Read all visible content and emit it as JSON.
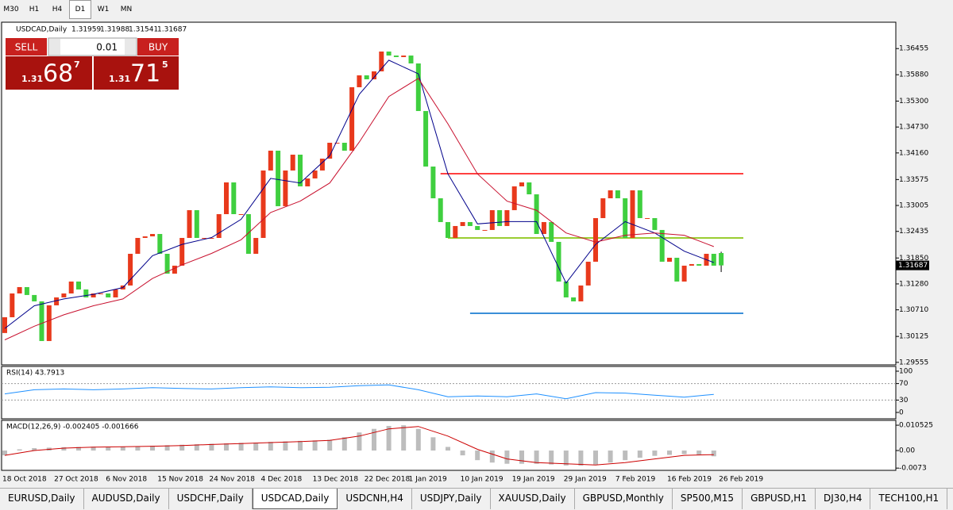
{
  "toolbar": {
    "timeframes": [
      "M30",
      "H1",
      "H4",
      "D1",
      "W1",
      "MN"
    ],
    "active": 3
  },
  "trade_panel": {
    "sell": "SELL",
    "lot": "0.01",
    "buy": "BUY",
    "bid_big": "1.31",
    "bid_main": "68",
    "bid_pip": "7",
    "ask_big": "1.31",
    "ask_main": "71",
    "ask_pip": "5"
  },
  "bottom_tabs": {
    "items": [
      "EURUSD,Daily",
      "AUDUSD,Daily",
      "USDCHF,Daily",
      "USDCAD,Daily",
      "USDCNH,H4",
      "USDJPY,Daily",
      "XAUUSD,Daily",
      "GBPUSD,Monthly",
      "SP500,M15",
      "GBPUSD,H1",
      "DJ30,H4",
      "TECH100,H1"
    ],
    "active": 3
  },
  "chart_data": [
    {
      "type": "candlestick",
      "title": "USDCAD,Daily",
      "up_color": "#e8391c",
      "down_color": "#3fcf3f",
      "categories": [
        "18 Oct 2018",
        null,
        null,
        null,
        null,
        null,
        null,
        "27 Oct 2018",
        null,
        null,
        null,
        null,
        null,
        null,
        "6 Nov 2018",
        null,
        null,
        null,
        null,
        null,
        null,
        "15 Nov 2018",
        null,
        null,
        null,
        null,
        null,
        null,
        "24 Nov 2018",
        null,
        null,
        null,
        null,
        null,
        null,
        "4 Dec 2018",
        null,
        null,
        null,
        null,
        null,
        null,
        "13 Dec 2018",
        null,
        null,
        null,
        null,
        null,
        null,
        "22 Dec 2018",
        null,
        null,
        null,
        null,
        null,
        "1 Jan 2019",
        null,
        null,
        null,
        null,
        null,
        null,
        "10 Jan 2019",
        null,
        null,
        null,
        null,
        null,
        null,
        "19 Jan 2019",
        null,
        null,
        null,
        null,
        null,
        null,
        "29 Jan 2019",
        null,
        null,
        null,
        null,
        null,
        null,
        "7 Feb 2019",
        null,
        null,
        null,
        null,
        null,
        null,
        "16 Feb 2019",
        null,
        null,
        null,
        null,
        null,
        null,
        "26 Feb 2019"
      ],
      "open": [
        1.302,
        1.30547,
        1.3107,
        1.3121,
        1.31036,
        1.30896,
        1.30024,
        1.30809,
        1.30983,
        1.3107,
        1.31332,
        1.31158,
        1.30983,
        1.3107,
        1.3107,
        1.30983,
        1.31158,
        1.31245,
        1.31942,
        1.32291,
        1.32326,
        1.32378,
        1.31942,
        1.31506,
        1.31681,
        1.32291,
        1.32902,
        1.32291,
        1.32291,
        1.32291,
        1.32814,
        1.33512,
        1.32814,
        1.32814,
        1.31942,
        1.32291,
        1.33774,
        1.3421,
        1.32989,
        1.33774,
        1.34122,
        1.33425,
        1.33599,
        1.33774,
        1.34035,
        1.34384,
        1.34384,
        1.3421,
        1.35605,
        1.35866,
        1.35779,
        1.35954,
        1.3639,
        1.36302,
        1.36268,
        1.36302,
        1.36128,
        1.35082,
        1.33861,
        1.33163,
        1.3264,
        1.32291,
        1.32553,
        1.3264,
        1.32553,
        1.32466,
        1.32466,
        1.32902,
        1.32553,
        1.32902,
        1.33425,
        1.33512,
        1.3325,
        1.32378,
        1.3264,
        1.32204,
        1.31332,
        1.30983,
        1.30896,
        1.31245,
        1.31768,
        1.32727,
        1.33163,
        1.33338,
        1.33163,
        1.32291,
        1.33338,
        1.32727,
        1.32727,
        1.32466,
        1.31768,
        1.31855,
        1.31332,
        1.31681,
        1.31716,
        1.31681,
        1.31942,
        1.31959
      ],
      "close": [
        1.30547,
        1.3107,
        1.3121,
        1.31036,
        1.30896,
        1.30024,
        1.30809,
        1.30983,
        1.3107,
        1.31332,
        1.31158,
        1.30983,
        1.3107,
        1.3107,
        1.30983,
        1.31158,
        1.31245,
        1.31942,
        1.32291,
        1.32326,
        1.32378,
        1.31942,
        1.31506,
        1.31681,
        1.32291,
        1.32902,
        1.32291,
        1.32291,
        1.32291,
        1.32814,
        1.33512,
        1.32814,
        1.32814,
        1.31942,
        1.32291,
        1.33774,
        1.3421,
        1.32989,
        1.33774,
        1.34122,
        1.33425,
        1.33599,
        1.33774,
        1.34035,
        1.34384,
        1.34384,
        1.3421,
        1.35605,
        1.35866,
        1.35779,
        1.35954,
        1.3639,
        1.36302,
        1.36268,
        1.36302,
        1.36128,
        1.35082,
        1.33861,
        1.33163,
        1.3264,
        1.32291,
        1.32553,
        1.3264,
        1.32553,
        1.32466,
        1.32466,
        1.32902,
        1.32553,
        1.32902,
        1.33425,
        1.33512,
        1.3325,
        1.32378,
        1.3264,
        1.32204,
        1.31332,
        1.30983,
        1.30896,
        1.31245,
        1.31768,
        1.32727,
        1.33163,
        1.33338,
        1.33163,
        1.32291,
        1.33338,
        1.32727,
        1.32727,
        1.32466,
        1.31768,
        1.31855,
        1.31332,
        1.31681,
        1.31716,
        1.31681,
        1.31942,
        1.31681,
        1.31687
      ],
      "last_high": 1.31988,
      "last_low": 1.31541,
      "series": [
        {
          "color": "#00008b",
          "x": [
            0,
            4,
            8,
            12,
            16,
            20,
            24,
            28,
            32,
            36,
            40,
            44,
            48,
            52,
            56,
            60,
            64,
            68,
            72,
            76,
            80,
            84,
            88,
            92,
            96
          ],
          "values": [
            1.303,
            1.308,
            1.3095,
            1.3105,
            1.312,
            1.319,
            1.3215,
            1.323,
            1.327,
            1.336,
            1.335,
            1.341,
            1.3545,
            1.362,
            1.359,
            1.337,
            1.326,
            1.3265,
            1.3265,
            1.313,
            1.3215,
            1.3265,
            1.324,
            1.32,
            1.3175
          ]
        },
        {
          "color": "#c8102e",
          "x": [
            0,
            4,
            8,
            12,
            16,
            20,
            24,
            28,
            32,
            36,
            40,
            44,
            48,
            52,
            56,
            60,
            64,
            68,
            72,
            76,
            80,
            84,
            88,
            92,
            96
          ],
          "values": [
            1.3005,
            1.3035,
            1.306,
            1.308,
            1.3095,
            1.314,
            1.317,
            1.3195,
            1.3225,
            1.3285,
            1.331,
            1.335,
            1.344,
            1.354,
            1.358,
            1.348,
            1.337,
            1.331,
            1.329,
            1.324,
            1.322,
            1.3235,
            1.324,
            1.3235,
            1.321
          ]
        }
      ],
      "hlines": [
        {
          "value": 1.33704,
          "color": "#ff4040",
          "from": 59,
          "to": 100
        },
        {
          "value": 1.32291,
          "color": "#9acd32",
          "from": 60,
          "to": 100
        },
        {
          "value": 1.30634,
          "color": "#3a8fd8",
          "from": 63,
          "to": 100
        }
      ],
      "ylim": [
        1.295,
        1.37
      ],
      "yticks": [
        1.36455,
        {
          "value": 1.3588,
          "label": "1.35880"
        },
        {
          "value": 1.353,
          "label": "1.35300"
        },
        {
          "value": 1.3473,
          "label": "1.34730"
        },
        {
          "value": 1.3416,
          "label": "1.34160"
        },
        1.33575,
        1.33005,
        1.32435,
        {
          "value": 1.3185,
          "label": "1.31850"
        },
        {
          "value": 1.3128,
          "label": "1.31280"
        },
        {
          "value": 1.3071,
          "label": "1.30710"
        },
        1.30125,
        1.29555
      ]
    },
    {
      "type": "line",
      "title": "RSI(14) 43.7913",
      "color": "#1e90ff",
      "x": [
        0,
        4,
        8,
        12,
        16,
        20,
        24,
        28,
        32,
        36,
        40,
        44,
        48,
        52,
        56,
        60,
        64,
        68,
        72,
        76,
        80,
        84,
        88,
        92,
        96
      ],
      "values": [
        45,
        55,
        57,
        55,
        57,
        60,
        58,
        57,
        60,
        62,
        60,
        61,
        65,
        67,
        55,
        38,
        40,
        38,
        45,
        33,
        48,
        47,
        42,
        37,
        43.79
      ],
      "ylim": [
        0,
        100
      ],
      "yticks": [
        100,
        70,
        30,
        0
      ]
    },
    {
      "type": "bar",
      "title": "MACD(12,26,9) -0.002405 -0.001666",
      "series": [
        {
          "type": "bar",
          "color": "#bdbdbd",
          "x": [
            0,
            2,
            4,
            6,
            8,
            10,
            12,
            14,
            16,
            18,
            20,
            22,
            24,
            26,
            28,
            30,
            32,
            34,
            36,
            38,
            40,
            42,
            44,
            46,
            48,
            50,
            52,
            54,
            56,
            58,
            60,
            62,
            64,
            66,
            68,
            70,
            72,
            74,
            76,
            78,
            80,
            82,
            84,
            86,
            88,
            90,
            92,
            94,
            96
          ],
          "values": [
            -0.002,
            0.0005,
            0.001,
            0.0012,
            0.0014,
            0.0015,
            0.0016,
            0.0016,
            0.0016,
            0.0018,
            0.002,
            0.0022,
            0.0024,
            0.0026,
            0.0028,
            0.003,
            0.0032,
            0.0033,
            0.0036,
            0.0038,
            0.004,
            0.0042,
            0.0045,
            0.0055,
            0.0075,
            0.009,
            0.0102,
            0.0105,
            0.009,
            0.0055,
            0.0015,
            -0.002,
            -0.004,
            -0.005,
            -0.0055,
            -0.0055,
            -0.0055,
            -0.0058,
            -0.0062,
            -0.0063,
            -0.0058,
            -0.005,
            -0.004,
            -0.003,
            -0.0022,
            -0.0018,
            -0.0015,
            -0.0018,
            -0.0024
          ]
        },
        {
          "type": "line",
          "color": "#cc0000",
          "x": [
            0,
            4,
            8,
            12,
            16,
            20,
            24,
            28,
            32,
            36,
            40,
            44,
            48,
            52,
            56,
            60,
            64,
            68,
            72,
            76,
            80,
            84,
            88,
            92,
            96
          ],
          "values": [
            -0.002,
            0.0,
            0.001,
            0.0014,
            0.0016,
            0.0018,
            0.0021,
            0.0025,
            0.0029,
            0.0033,
            0.0037,
            0.0042,
            0.006,
            0.009,
            0.01,
            0.006,
            0.0005,
            -0.0035,
            -0.005,
            -0.0055,
            -0.006,
            -0.005,
            -0.0035,
            -0.002,
            -0.0017
          ]
        }
      ],
      "ylim": [
        -0.0079,
        0.0122
      ],
      "yticks": [
        0.010525,
        {
          "value": 0,
          "label": "0.00"
        },
        -0.0073
      ]
    }
  ]
}
